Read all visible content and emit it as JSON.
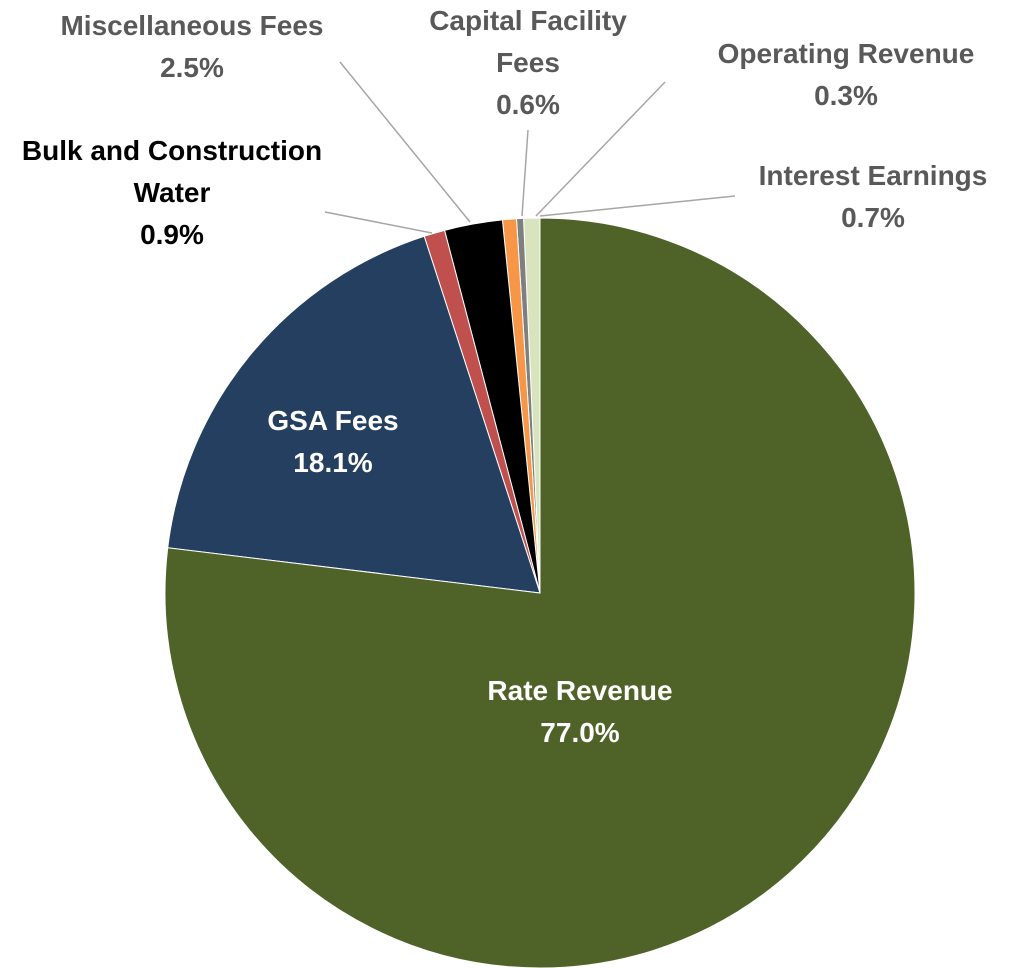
{
  "chart_data": {
    "type": "pie",
    "categories": [
      "Rate Revenue",
      "GSA Fees",
      "Bulk and Construction Water",
      "Miscellaneous Fees",
      "Capital Facility Fees",
      "Operating Revenue",
      "Interest Earnings"
    ],
    "values": [
      77.0,
      18.1,
      0.9,
      2.5,
      0.6,
      0.3,
      0.7
    ],
    "value_labels": [
      "77.0%",
      "18.1%",
      "0.9%",
      "2.5%",
      "0.6%",
      "0.3%",
      "0.7%"
    ],
    "colors": [
      "#4f6228",
      "#243f60",
      "#c0504d",
      "#000000",
      "#f79646",
      "#7f7f7f",
      "#d7e4bd"
    ]
  }
}
